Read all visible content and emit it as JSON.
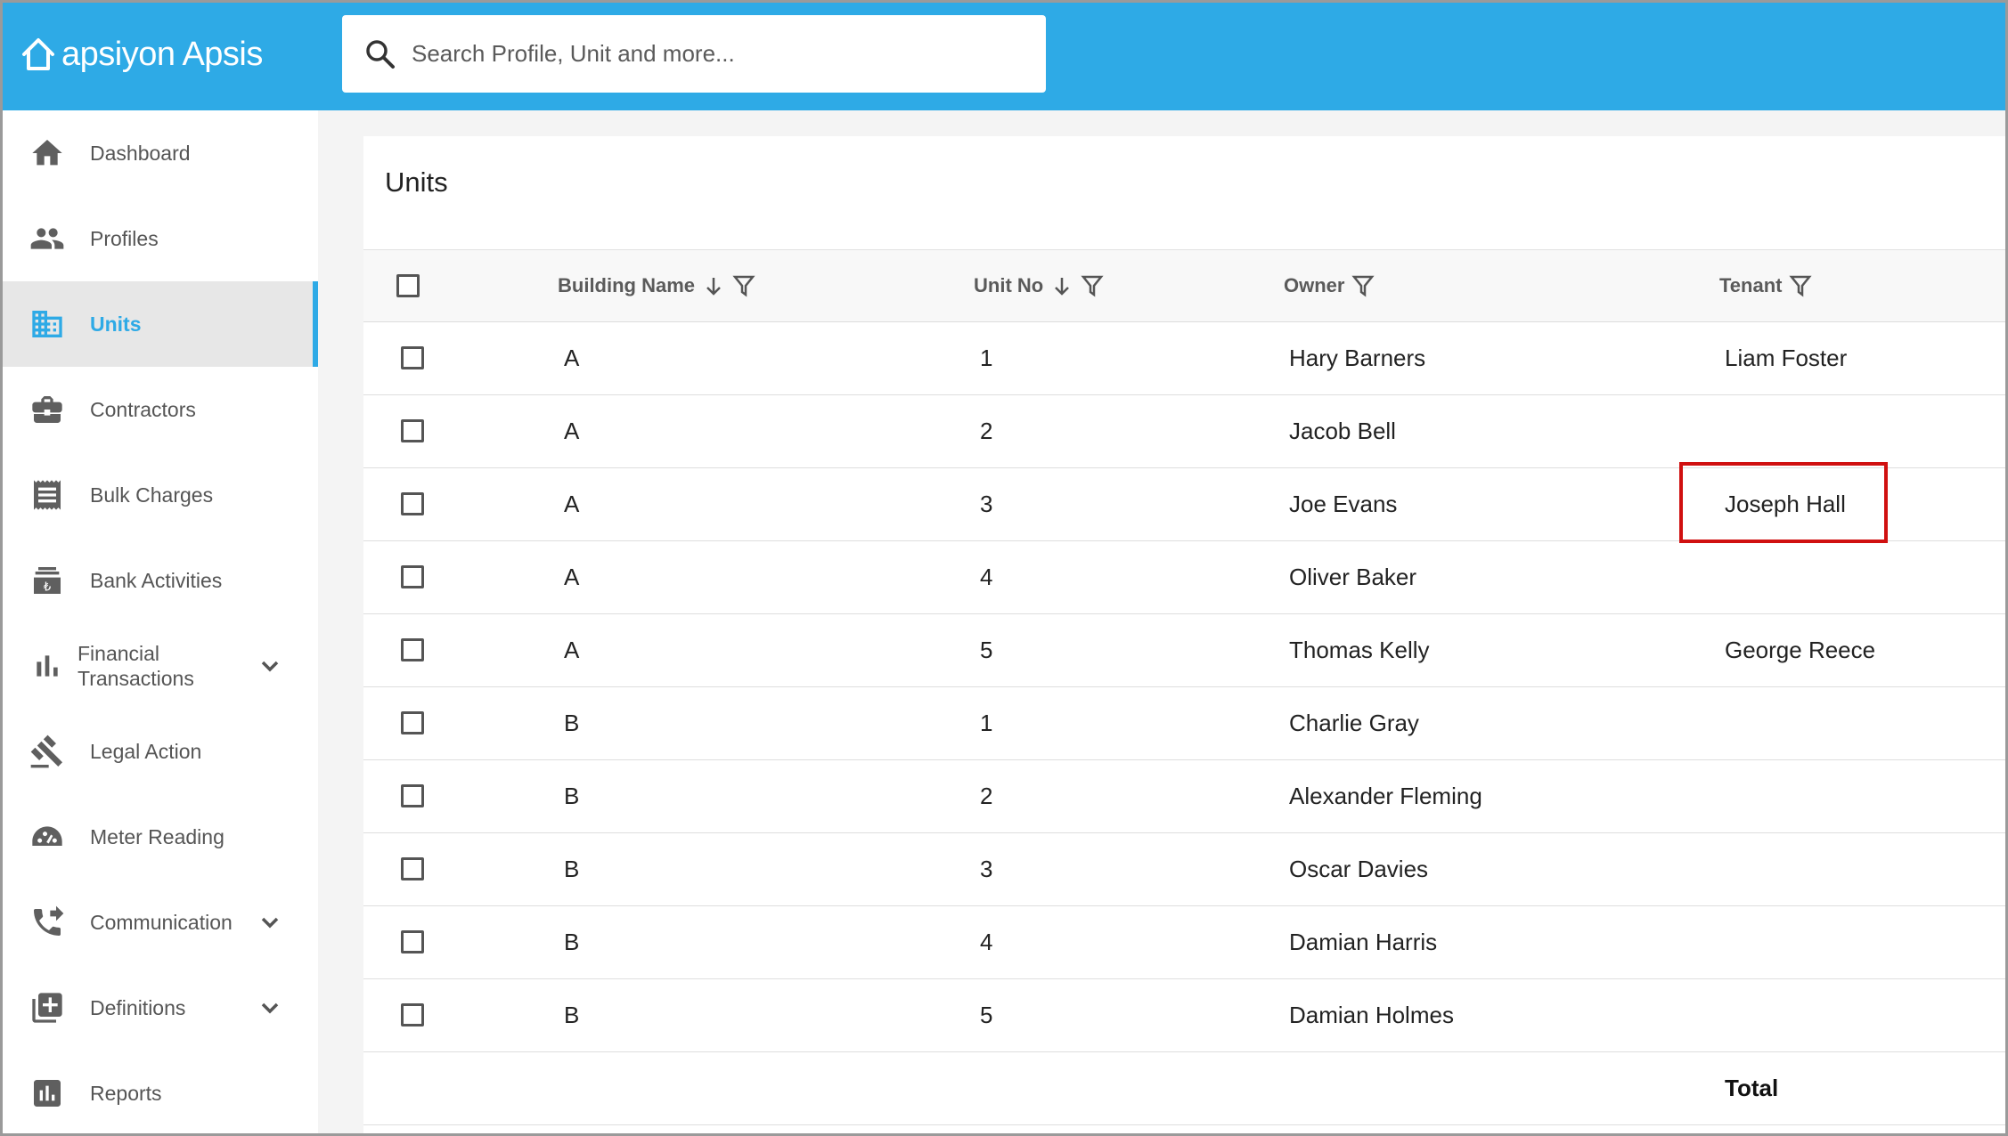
{
  "app": {
    "logo_text": "apsiyon Apsis"
  },
  "search": {
    "placeholder": "Search Profile, Unit and more..."
  },
  "sidebar": {
    "items": [
      {
        "label": "Dashboard",
        "icon": "home-icon"
      },
      {
        "label": "Profiles",
        "icon": "people-icon"
      },
      {
        "label": "Units",
        "icon": "building-icon",
        "active": true
      },
      {
        "label": "Contractors",
        "icon": "briefcase-icon"
      },
      {
        "label": "Bulk Charges",
        "icon": "receipt-icon"
      },
      {
        "label": "Bank Activities",
        "icon": "bank-icon"
      },
      {
        "label": "Financial Transactions",
        "icon": "bar-chart-icon",
        "expandable": true
      },
      {
        "label": "Legal Action",
        "icon": "gavel-icon"
      },
      {
        "label": "Meter Reading",
        "icon": "meter-icon"
      },
      {
        "label": "Communication",
        "icon": "phone-forward-icon",
        "expandable": true
      },
      {
        "label": "Definitions",
        "icon": "library-add-icon",
        "expandable": true
      },
      {
        "label": "Reports",
        "icon": "report-icon"
      }
    ]
  },
  "main": {
    "title": "Units",
    "columns": [
      {
        "label": "Building Name",
        "sortable": true,
        "filterable": true
      },
      {
        "label": "Unit No",
        "sortable": true,
        "filterable": true
      },
      {
        "label": "Owner",
        "sortable": false,
        "filterable": true
      },
      {
        "label": "Tenant",
        "sortable": false,
        "filterable": true
      }
    ],
    "rows": [
      {
        "building": "A",
        "unit": "1",
        "owner": "Hary Barners",
        "tenant": "Liam Foster"
      },
      {
        "building": "A",
        "unit": "2",
        "owner": "Jacob Bell",
        "tenant": ""
      },
      {
        "building": "A",
        "unit": "3",
        "owner": "Joe Evans",
        "tenant": "Joseph Hall",
        "highlighted_tenant": true
      },
      {
        "building": "A",
        "unit": "4",
        "owner": "Oliver Baker",
        "tenant": ""
      },
      {
        "building": "A",
        "unit": "5",
        "owner": "Thomas Kelly",
        "tenant": "George Reece"
      },
      {
        "building": "B",
        "unit": "1",
        "owner": "Charlie Gray",
        "tenant": ""
      },
      {
        "building": "B",
        "unit": "2",
        "owner": "Alexander Fleming",
        "tenant": ""
      },
      {
        "building": "B",
        "unit": "3",
        "owner": "Oscar Davies",
        "tenant": ""
      },
      {
        "building": "B",
        "unit": "4",
        "owner": "Damian Harris",
        "tenant": ""
      },
      {
        "building": "B",
        "unit": "5",
        "owner": "Damian Holmes",
        "tenant": ""
      }
    ],
    "total_label": "Total"
  },
  "colors": {
    "brand": "#2eaae6",
    "highlight": "#d01010"
  }
}
